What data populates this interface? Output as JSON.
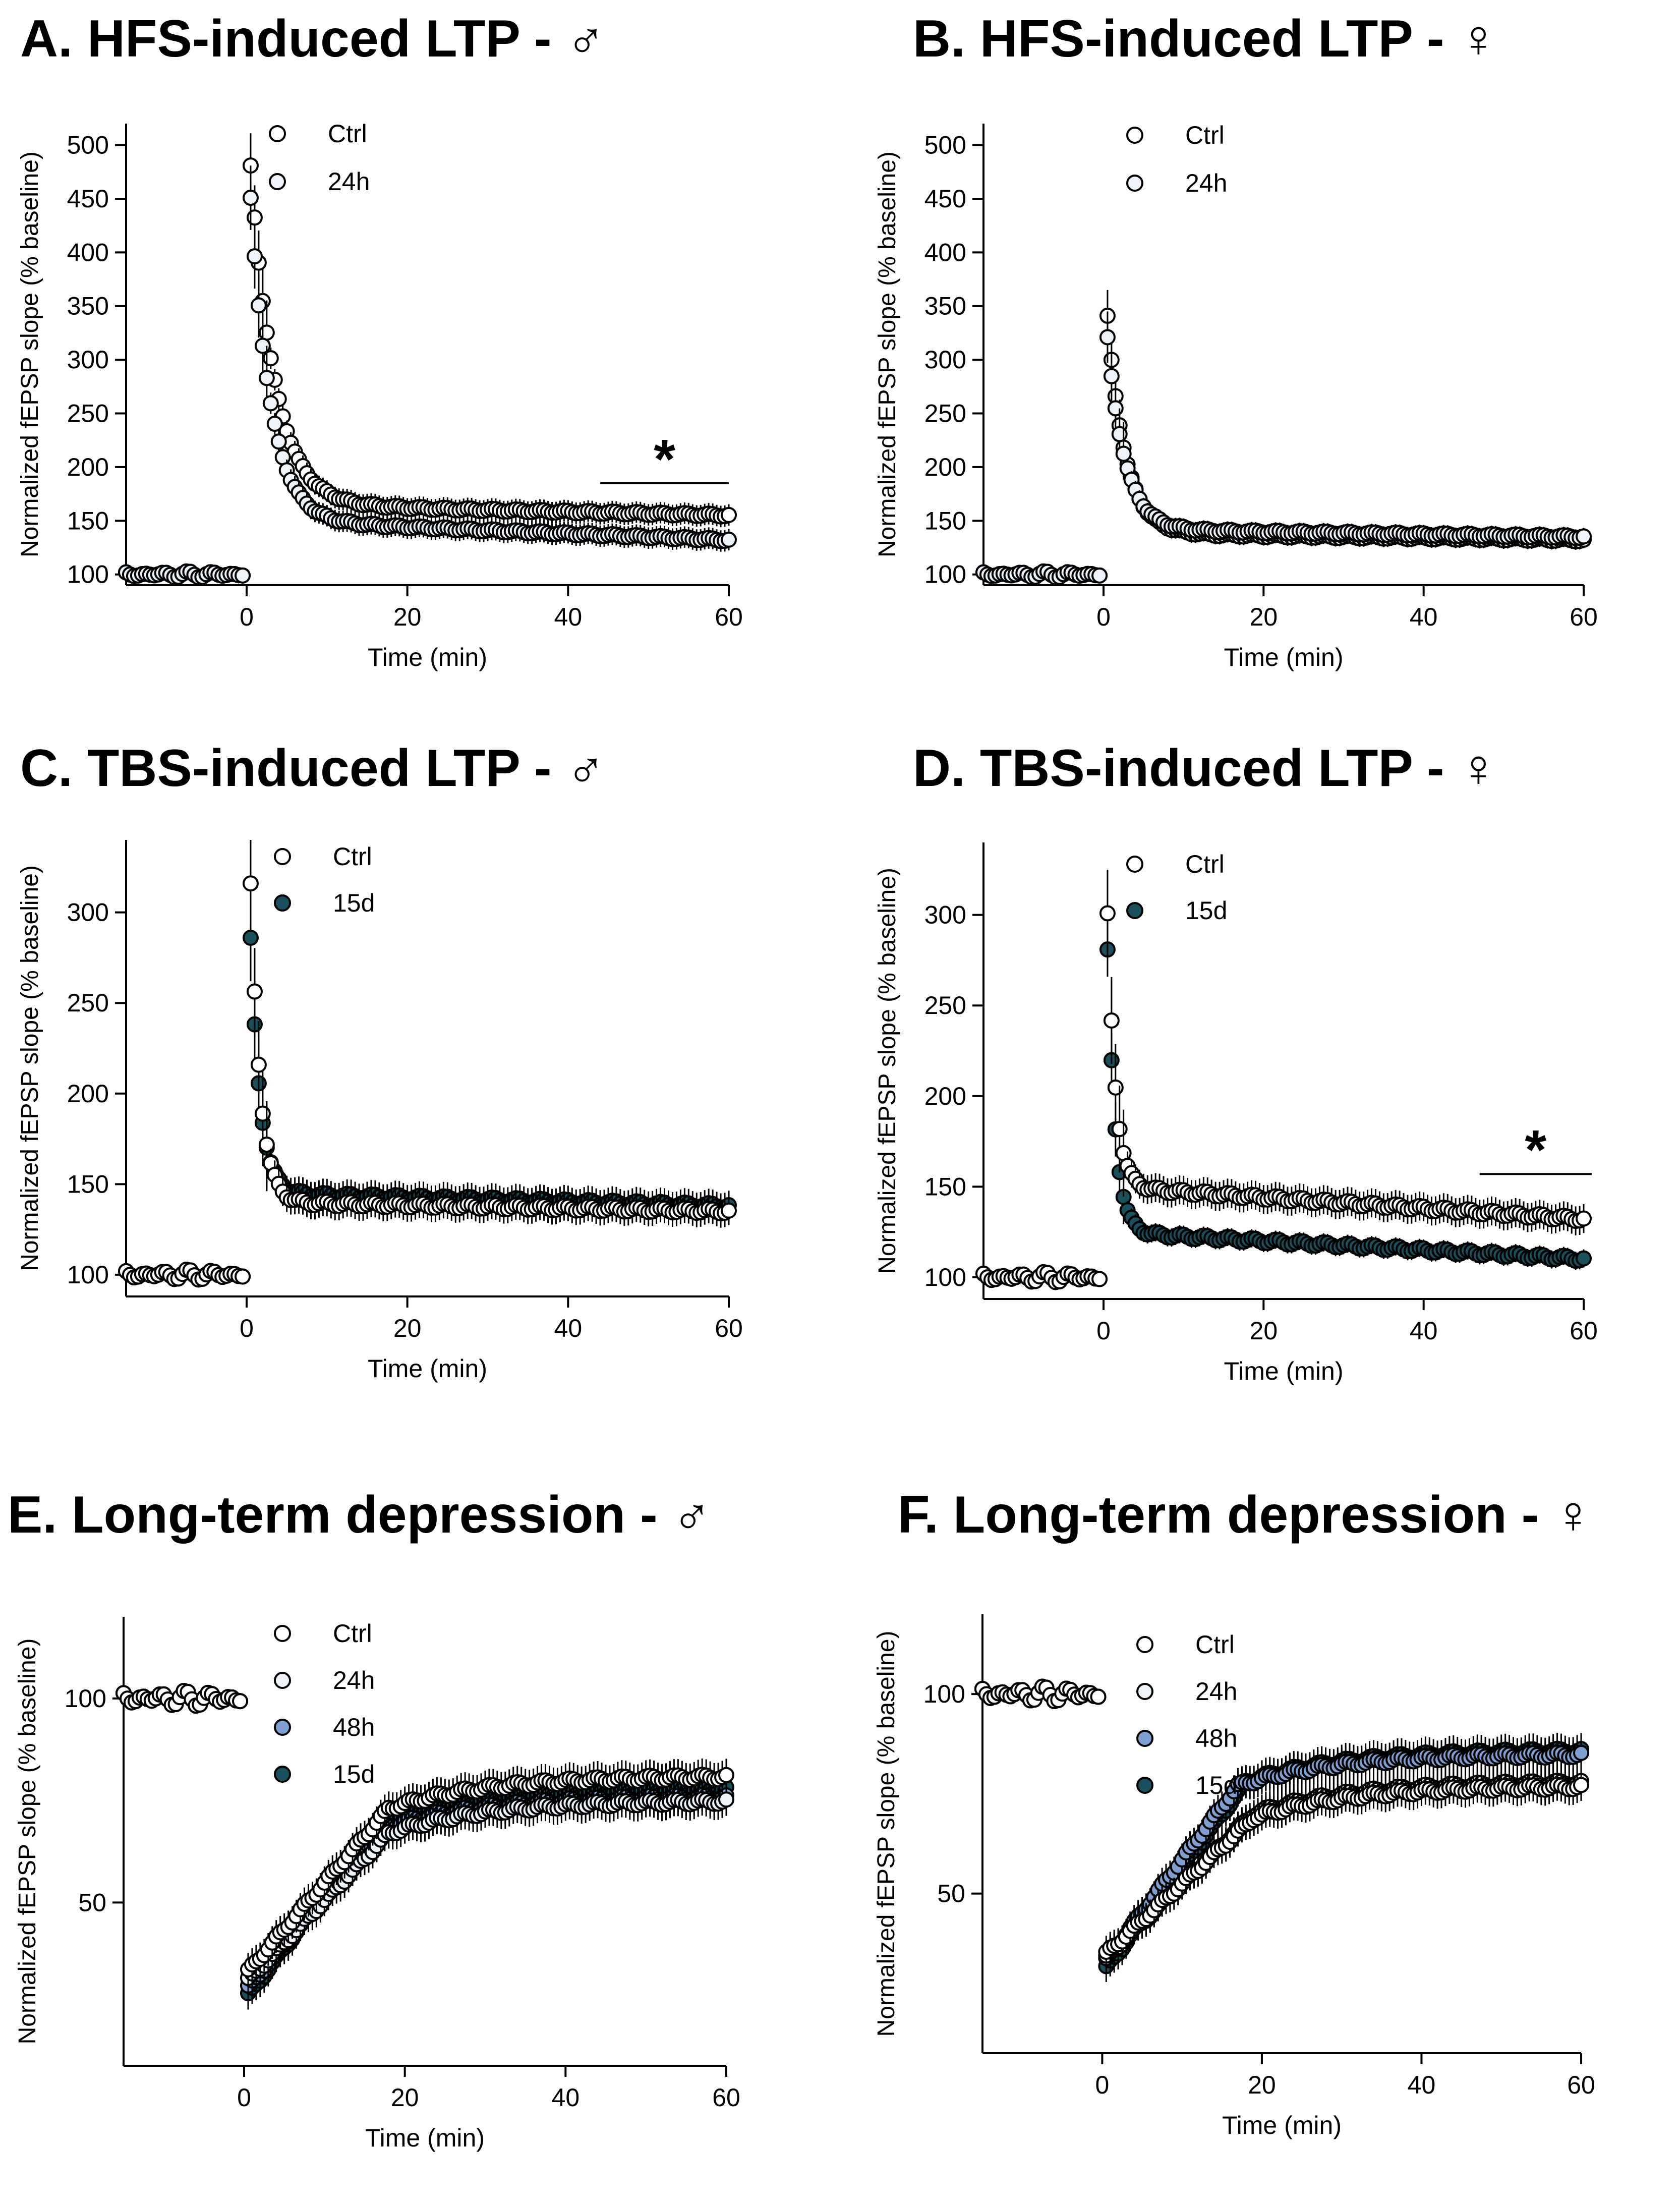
{
  "colors": {
    "axis": "#000000",
    "marker_stroke": "#000000",
    "Ctrl": "#ffffff",
    "24h": "#eef3fa",
    "48h": "#7f9fd1",
    "15d": "#1b4f5c"
  },
  "chart_data": [
    {
      "id": "A",
      "title": "A. HFS-induced LTP - ♂",
      "type": "scatter",
      "xlabel": "Time (min)",
      "ylabel": "Normalized fEPSP slope (% baseline)",
      "xlim": [
        -15,
        60
      ],
      "ylim": [
        90,
        520
      ],
      "xticks": [
        "0",
        "20",
        "40",
        "60"
      ],
      "yticks": [
        "100",
        "150",
        "200",
        "250",
        "300",
        "350",
        "400",
        "450",
        "500"
      ],
      "xtick_values": [
        0,
        20,
        40,
        60
      ],
      "ytick_values": [
        100,
        150,
        200,
        250,
        300,
        350,
        400,
        450,
        500
      ],
      "legend": [
        {
          "label": "Ctrl",
          "color_key": "Ctrl"
        },
        {
          "label": "24h",
          "color_key": "24h"
        }
      ],
      "significance": {
        "label": "*",
        "from": 44,
        "to": 60,
        "y": 185
      },
      "series": [
        {
          "name": "Ctrl",
          "color_key": "Ctrl",
          "baseline": 100,
          "peak": 480,
          "plateau": 165,
          "end": 155,
          "tau": 3.0,
          "error": 10
        },
        {
          "name": "24h",
          "color_key": "24h",
          "baseline": 100,
          "peak": 450,
          "plateau": 150,
          "end": 132,
          "tau": 2.5,
          "error": 10
        }
      ]
    },
    {
      "id": "B",
      "title": "B. HFS-induced LTP - ♀",
      "type": "scatter",
      "xlabel": "Time (min)",
      "ylabel": "Normalized fEPSP slope (% baseline)",
      "xlim": [
        -15,
        60
      ],
      "ylim": [
        90,
        520
      ],
      "xticks": [
        "0",
        "20",
        "40",
        "60"
      ],
      "yticks": [
        "100",
        "150",
        "200",
        "250",
        "300",
        "350",
        "400",
        "450",
        "500"
      ],
      "xtick_values": [
        0,
        20,
        40,
        60
      ],
      "ytick_values": [
        100,
        150,
        200,
        250,
        300,
        350,
        400,
        450,
        500
      ],
      "legend": [
        {
          "label": "Ctrl",
          "color_key": "Ctrl"
        },
        {
          "label": "24h",
          "color_key": "24h"
        }
      ],
      "series": [
        {
          "name": "Ctrl",
          "color_key": "Ctrl",
          "baseline": 100,
          "peak": 340,
          "plateau": 138,
          "end": 132,
          "tau": 2.2,
          "error": 8
        },
        {
          "name": "24h",
          "color_key": "24h",
          "baseline": 100,
          "peak": 320,
          "plateau": 142,
          "end": 135,
          "tau": 2.2,
          "error": 8
        }
      ]
    },
    {
      "id": "C",
      "title": "C. TBS-induced LTP - ♂",
      "type": "scatter",
      "xlabel": "Time (min)",
      "ylabel": "Normalized fEPSP slope (% baseline)",
      "xlim": [
        -15,
        60
      ],
      "ylim": [
        88,
        340
      ],
      "xticks": [
        "0",
        "20",
        "40",
        "60"
      ],
      "yticks": [
        "100",
        "150",
        "200",
        "250",
        "300"
      ],
      "xtick_values": [
        0,
        20,
        40,
        60
      ],
      "ytick_values": [
        100,
        150,
        200,
        250,
        300
      ],
      "legend": [
        {
          "label": "Ctrl",
          "color_key": "Ctrl"
        },
        {
          "label": "15d",
          "color_key": "15d"
        }
      ],
      "series": [
        {
          "name": "15d",
          "color_key": "15d",
          "baseline": 100,
          "peak": 285,
          "plateau": 145,
          "end": 138,
          "tau": 1.2,
          "error": 8
        },
        {
          "name": "Ctrl",
          "color_key": "Ctrl",
          "baseline": 100,
          "peak": 315,
          "plateau": 140,
          "end": 135,
          "tau": 1.2,
          "error": 8
        }
      ]
    },
    {
      "id": "D",
      "title": "D. TBS-induced LTP - ♀",
      "type": "scatter",
      "xlabel": "Time (min)",
      "ylabel": "Normalized fEPSP slope (% baseline)",
      "xlim": [
        -15,
        60
      ],
      "ylim": [
        88,
        340
      ],
      "xticks": [
        "0",
        "20",
        "40",
        "60"
      ],
      "yticks": [
        "100",
        "150",
        "200",
        "250",
        "300"
      ],
      "xtick_values": [
        0,
        20,
        40,
        60
      ],
      "ytick_values": [
        100,
        150,
        200,
        250,
        300
      ],
      "legend": [
        {
          "label": "Ctrl",
          "color_key": "Ctrl"
        },
        {
          "label": "15d",
          "color_key": "15d"
        }
      ],
      "significance": {
        "label": "*",
        "from": 47,
        "to": 61,
        "y": 157
      },
      "series": [
        {
          "name": "15d",
          "color_key": "15d",
          "baseline": 100,
          "peak": 280,
          "plateau": 125,
          "end": 110,
          "tau": 1.0,
          "error": 5
        },
        {
          "name": "Ctrl",
          "color_key": "Ctrl",
          "baseline": 100,
          "peak": 300,
          "plateau": 150,
          "end": 132,
          "tau": 1.0,
          "error": 8
        }
      ]
    },
    {
      "id": "E",
      "title": "E. Long-term depression - ♂",
      "type": "scatter",
      "xlabel": "Time (min)",
      "ylabel": "Normalized fEPSP slope (% baseline)",
      "xlim": [
        -15,
        60
      ],
      "ylim": [
        10,
        120
      ],
      "xticks": [
        "0",
        "20",
        "40",
        "60"
      ],
      "yticks": [
        "50",
        "100"
      ],
      "xtick_values": [
        0,
        20,
        40,
        60
      ],
      "ytick_values": [
        50,
        100
      ],
      "legend": [
        {
          "label": "Ctrl",
          "color_key": "Ctrl"
        },
        {
          "label": "24h",
          "color_key": "24h"
        },
        {
          "label": "48h",
          "color_key": "48h"
        },
        {
          "label": "15d",
          "color_key": "15d"
        }
      ],
      "series": [
        {
          "name": "15d",
          "color_key": "15d",
          "baseline": 100,
          "start": 26,
          "end": 78,
          "rise_to": 17,
          "error": 4
        },
        {
          "name": "48h",
          "color_key": "48h",
          "baseline": 100,
          "start": 28,
          "end": 76,
          "rise_to": 17,
          "error": 4
        },
        {
          "name": "24h",
          "color_key": "24h",
          "baseline": 100,
          "start": 30,
          "end": 75,
          "rise_to": 18,
          "error": 4
        },
        {
          "name": "Ctrl",
          "color_key": "Ctrl",
          "baseline": 100,
          "start": 32,
          "end": 81,
          "rise_to": 18,
          "error": 4
        }
      ]
    },
    {
      "id": "F",
      "title": "F. Long-term depression - ♀",
      "type": "scatter",
      "xlabel": "Time (min)",
      "ylabel": "Normalized fEPSP slope (% baseline)",
      "xlim": [
        -15,
        60
      ],
      "ylim": [
        10,
        120
      ],
      "xticks": [
        "0",
        "20",
        "40",
        "60"
      ],
      "yticks": [
        "50",
        "100"
      ],
      "xtick_values": [
        0,
        20,
        40,
        60
      ],
      "ytick_values": [
        50,
        100
      ],
      "legend": [
        {
          "label": "Ctrl",
          "color_key": "Ctrl"
        },
        {
          "label": "24h",
          "color_key": "24h"
        },
        {
          "label": "48h",
          "color_key": "48h"
        },
        {
          "label": "15d",
          "color_key": "15d"
        }
      ],
      "series": [
        {
          "name": "15d",
          "color_key": "15d",
          "baseline": 100,
          "start": 30,
          "end": 86,
          "rise_to": 18,
          "error": 4
        },
        {
          "name": "48h",
          "color_key": "48h",
          "baseline": 100,
          "start": 32,
          "end": 85,
          "rise_to": 17,
          "error": 4
        },
        {
          "name": "24h",
          "color_key": "24h",
          "baseline": 100,
          "start": 33,
          "end": 78,
          "rise_to": 19,
          "error": 4
        },
        {
          "name": "Ctrl",
          "color_key": "Ctrl",
          "baseline": 100,
          "start": 34,
          "end": 77,
          "rise_to": 19,
          "error": 4
        }
      ]
    }
  ]
}
